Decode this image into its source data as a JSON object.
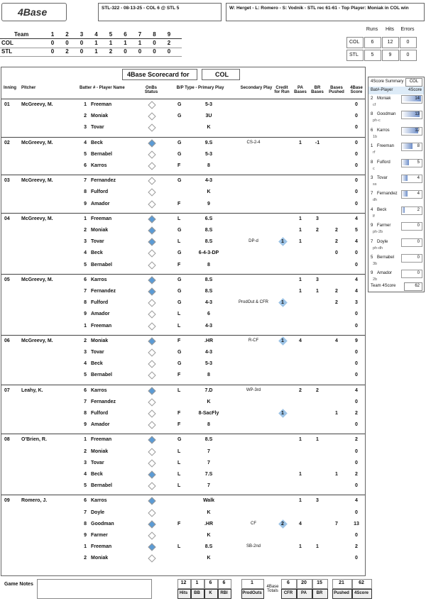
{
  "header": {
    "logo": "4Base",
    "game": "STL-322 - 08-13-25 - COL 6 @ STL 5",
    "summary": "W: Herget - L: Romero - S: Vodnik - STL rec 61-61 - Top Player: Moniak in COL win"
  },
  "line_score": {
    "team_label": "Team",
    "innings": [
      "1",
      "2",
      "3",
      "4",
      "5",
      "6",
      "7",
      "8",
      "9"
    ],
    "rows": [
      {
        "team": "COL",
        "runs": [
          0,
          0,
          0,
          1,
          1,
          1,
          1,
          0,
          2
        ]
      },
      {
        "team": "STL",
        "runs": [
          0,
          2,
          0,
          1,
          2,
          0,
          0,
          0,
          0
        ]
      }
    ]
  },
  "totals": {
    "headers": [
      "Runs",
      "Hits",
      "Errors"
    ],
    "rows": [
      {
        "team": "COL",
        "values": [
          6,
          12,
          0
        ]
      },
      {
        "team": "STL",
        "values": [
          5,
          9,
          0
        ]
      }
    ]
  },
  "scorecard": {
    "title": "4Base Scorecard for",
    "team": "COL",
    "columns": [
      "Inning",
      "Pitcher",
      "Batter # - Player Name",
      "OnBs Status",
      "B/P Type - Primary Play",
      "Secondary Play",
      "Credit for Run",
      "PA Bases",
      "BR Bases",
      "Bases Pushed",
      "4Base Score"
    ],
    "innings": [
      {
        "inning": "01",
        "pitcher": "McGreevy, M.",
        "batters": [
          {
            "num": 1,
            "name": "Freeman",
            "type": "G",
            "play": "5-3",
            "score": 0
          },
          {
            "num": 2,
            "name": "Moniak",
            "type": "G",
            "play": "3U",
            "score": 0
          },
          {
            "num": 3,
            "name": "Tovar",
            "play": "K",
            "score": 0
          }
        ]
      },
      {
        "inning": "02",
        "pitcher": "McGreevy, M.",
        "batters": [
          {
            "num": 4,
            "name": "Beck",
            "type": "G",
            "play": "9.S",
            "secondary": "CS-2-4",
            "pa": 1,
            "br": -1,
            "score": 0
          },
          {
            "num": 5,
            "name": "Bernabel",
            "type": "G",
            "play": "5-3",
            "score": 0
          },
          {
            "num": 6,
            "name": "Karros",
            "type": "F",
            "play": "8",
            "score": 0
          }
        ]
      },
      {
        "inning": "03",
        "pitcher": "McGreevy, M.",
        "batters": [
          {
            "num": 7,
            "name": "Fernandez",
            "type": "G",
            "play": "4-3",
            "score": 0
          },
          {
            "num": 8,
            "name": "Fulford",
            "play": "K",
            "score": 0
          },
          {
            "num": 9,
            "name": "Amador",
            "type": "F",
            "play": "9",
            "score": 0
          }
        ]
      },
      {
        "inning": "04",
        "pitcher": "McGreevy, M.",
        "batters": [
          {
            "num": 1,
            "name": "Freeman",
            "type": "L",
            "play": "6.S",
            "pa": 1,
            "br": 3,
            "score": 4
          },
          {
            "num": 2,
            "name": "Moniak",
            "type": "G",
            "play": "8.S",
            "pa": 1,
            "br": 2,
            "pushed": 2,
            "score": 5
          },
          {
            "num": 3,
            "name": "Tovar",
            "type": "L",
            "play": "8.S",
            "secondary": "DP-d",
            "credit": 1,
            "pa": 1,
            "pushed": 2,
            "score": 4
          },
          {
            "num": 4,
            "name": "Beck",
            "type": "G",
            "play": "6-4-3-DP",
            "pushed": 0,
            "score": 0
          },
          {
            "num": 5,
            "name": "Bernabel",
            "type": "F",
            "play": "8",
            "score": 0
          }
        ]
      },
      {
        "inning": "05",
        "pitcher": "McGreevy, M.",
        "batters": [
          {
            "num": 6,
            "name": "Karros",
            "type": "G",
            "play": "8.S",
            "pa": 1,
            "br": 3,
            "score": 4
          },
          {
            "num": 7,
            "name": "Fernandez",
            "type": "G",
            "play": "8.S",
            "pa": 1,
            "br": 1,
            "pushed": 2,
            "score": 4
          },
          {
            "num": 8,
            "name": "Fulford",
            "type": "G",
            "play": "4-3",
            "secondary": "ProdOut & CFR",
            "credit": 1,
            "pushed": 2,
            "score": 3
          },
          {
            "num": 9,
            "name": "Amador",
            "type": "L",
            "play": "6",
            "score": 0
          },
          {
            "num": 1,
            "name": "Freeman",
            "type": "L",
            "play": "4-3",
            "score": 0
          }
        ]
      },
      {
        "inning": "06",
        "pitcher": "McGreevy, M.",
        "batters": [
          {
            "num": 2,
            "name": "Moniak",
            "type": "F",
            "play": ".HR",
            "secondary": "R-CF",
            "credit": 1,
            "pa": 4,
            "pushed": 4,
            "score": 9
          },
          {
            "num": 3,
            "name": "Tovar",
            "type": "G",
            "play": "4-3",
            "score": 0
          },
          {
            "num": 4,
            "name": "Beck",
            "type": "G",
            "play": "5-3",
            "score": 0
          },
          {
            "num": 5,
            "name": "Bernabel",
            "type": "F",
            "play": "8",
            "score": 0
          }
        ]
      },
      {
        "inning": "07",
        "pitcher": "Leahy, K.",
        "batters": [
          {
            "num": 6,
            "name": "Karros",
            "type": "L",
            "play": "7.D",
            "secondary": "WP-3rd",
            "pa": 2,
            "br": 2,
            "score": 4
          },
          {
            "num": 7,
            "name": "Fernandez",
            "play": "K",
            "score": 0
          },
          {
            "num": 8,
            "name": "Fulford",
            "type": "F",
            "play": "8-SacFly",
            "credit": 1,
            "pushed": 1,
            "score": 2
          },
          {
            "num": 9,
            "name": "Amador",
            "type": "F",
            "play": "8",
            "score": 0
          }
        ]
      },
      {
        "inning": "08",
        "pitcher": "O'Brien, R.",
        "batters": [
          {
            "num": 1,
            "name": "Freeman",
            "type": "G",
            "play": "8.S",
            "pa": 1,
            "br": 1,
            "score": 2
          },
          {
            "num": 2,
            "name": "Moniak",
            "type": "L",
            "play": "7",
            "score": 0
          },
          {
            "num": 3,
            "name": "Tovar",
            "type": "L",
            "play": "7",
            "score": 0
          },
          {
            "num": 4,
            "name": "Beck",
            "type": "L",
            "play": "7.S",
            "pa": 1,
            "pushed": 1,
            "score": 2
          },
          {
            "num": 5,
            "name": "Bernabel",
            "type": "L",
            "play": "7",
            "score": 0
          }
        ]
      },
      {
        "inning": "09",
        "pitcher": "Romero, J.",
        "batters": [
          {
            "num": 6,
            "name": "Karros",
            "play": "Walk",
            "pa": 1,
            "br": 3,
            "score": 4
          },
          {
            "num": 7,
            "name": "Doyle",
            "play": "K",
            "score": 0
          },
          {
            "num": 8,
            "name": "Goodman",
            "type": "F",
            "play": ".HR",
            "secondary": "CF",
            "credit": 2,
            "pa": 4,
            "pushed": 7,
            "score": 13
          },
          {
            "num": 9,
            "name": "Farmer",
            "play": "K",
            "score": 0
          },
          {
            "num": 1,
            "name": "Freeman",
            "type": "L",
            "play": "8.S",
            "secondary": "SB-2nd",
            "pa": 1,
            "br": 1,
            "score": 2
          },
          {
            "num": 2,
            "name": "Moniak",
            "play": "K",
            "score": 0
          }
        ]
      }
    ]
  },
  "footer": {
    "notes_label": "Game Notes",
    "stats": [
      {
        "value": 12,
        "label": "Hits"
      },
      {
        "value": 1,
        "label": "BB"
      },
      {
        "value": 6,
        "label": "K"
      },
      {
        "value": 6,
        "label": "RBI"
      }
    ],
    "prodouts": {
      "value": 1,
      "label": "ProdOuts"
    },
    "totals_label": "4Base Totals",
    "base_totals": [
      {
        "value": 6,
        "label": "CFR"
      },
      {
        "value": 20,
        "label": "PA"
      },
      {
        "value": 15,
        "label": "BR"
      },
      {
        "value": 21,
        "label": "Pushed"
      },
      {
        "value": 62,
        "label": "4Score"
      }
    ]
  },
  "summary": {
    "title": "4Score Summary",
    "team": "COL",
    "col_player": "Bat#-Player",
    "col_score": "4Score",
    "players": [
      {
        "num": 2,
        "name": "Moniak",
        "pos": "cf",
        "score": 14
      },
      {
        "num": 8,
        "name": "Goodman",
        "pos": "ph-c",
        "score": 13
      },
      {
        "num": 6,
        "name": "Karros",
        "pos": "1b",
        "score": 12
      },
      {
        "num": 1,
        "name": "Freeman",
        "pos": "rf",
        "score": 8
      },
      {
        "num": 8,
        "name": "Fulford",
        "pos": "c",
        "score": 5
      },
      {
        "num": 3,
        "name": "Tovar",
        "pos": "ss",
        "score": 4
      },
      {
        "num": 7,
        "name": "Fernandez",
        "pos": "dh",
        "score": 4
      },
      {
        "num": 4,
        "name": "Beck",
        "pos": "lf",
        "score": 2
      },
      {
        "num": 9,
        "name": "Farmer",
        "pos": "ph-2b",
        "score": 0
      },
      {
        "num": 7,
        "name": "Doyle",
        "pos": "ph-dh",
        "score": 0
      },
      {
        "num": 5,
        "name": "Bernabel",
        "pos": "3b",
        "score": 0
      },
      {
        "num": 9,
        "name": "Amador",
        "pos": "2b",
        "score": 0
      }
    ],
    "team_label": "Team 4Score",
    "team_score": 62
  }
}
